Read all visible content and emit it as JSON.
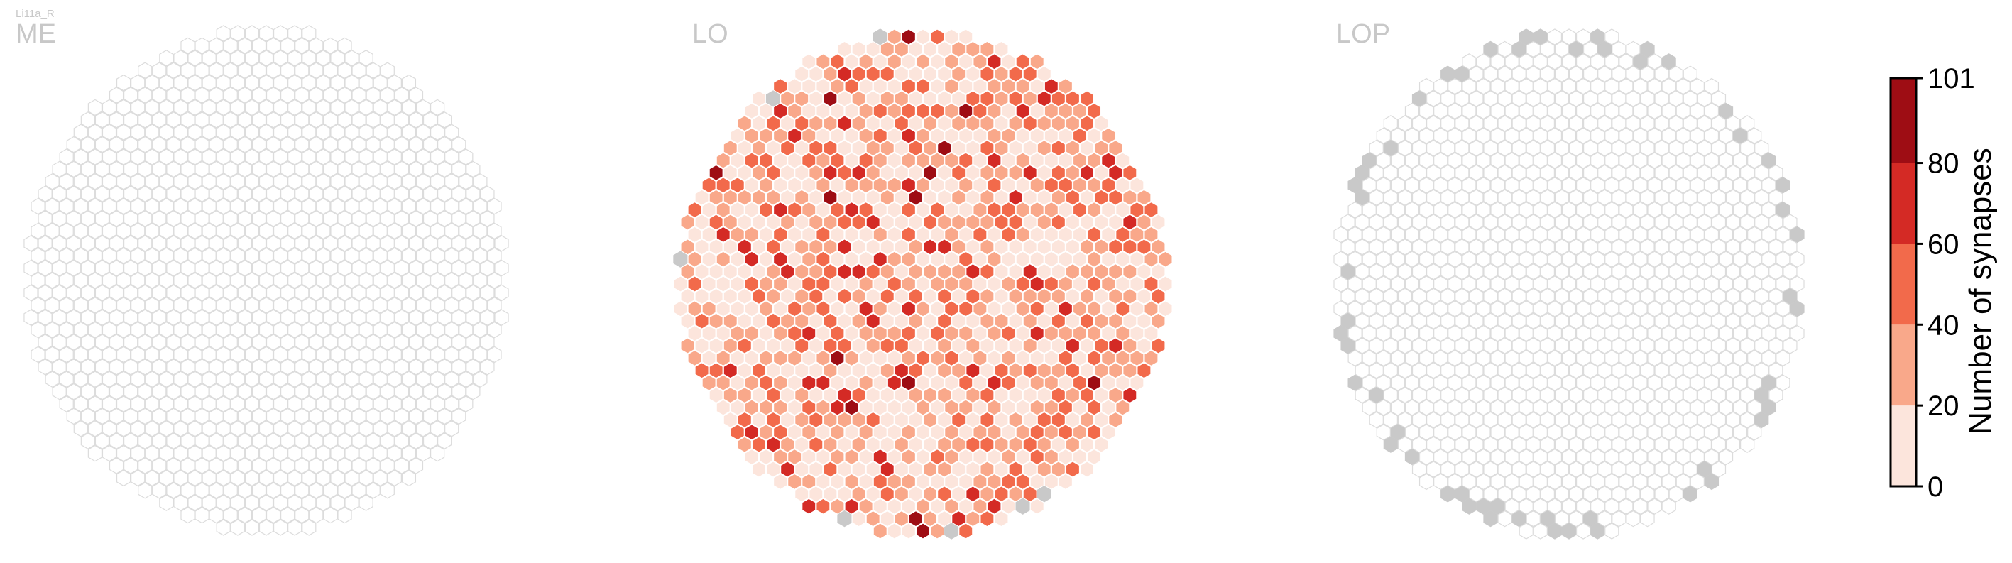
{
  "chart_data": {
    "type": "heatmap",
    "cell_type_label": "Li11a_R",
    "panels": [
      {
        "name": "ME",
        "data": "empty"
      },
      {
        "name": "LO",
        "data": "synapse counts (estimated visually)"
      },
      {
        "name": "LOP",
        "data": "empty"
      }
    ],
    "colorbar": {
      "title": "Number of synapses",
      "min": 0,
      "max": 101,
      "ticks": [
        0,
        20,
        40,
        60,
        80,
        101
      ],
      "bins": [
        {
          "from": 0,
          "to": 20,
          "color": "#fce5dc"
        },
        {
          "from": 20,
          "to": 40,
          "color": "#f9a88a"
        },
        {
          "from": 40,
          "to": 60,
          "color": "#f26a4b"
        },
        {
          "from": 60,
          "to": 80,
          "color": "#d42a25"
        },
        {
          "from": 80,
          "to": 101,
          "color": "#9e0d14"
        }
      ]
    },
    "colors": {
      "empty_column_outline": "#dcdcdc",
      "no_data_column": "#c9c9c9",
      "label_gray": "#c8c8c8"
    }
  }
}
